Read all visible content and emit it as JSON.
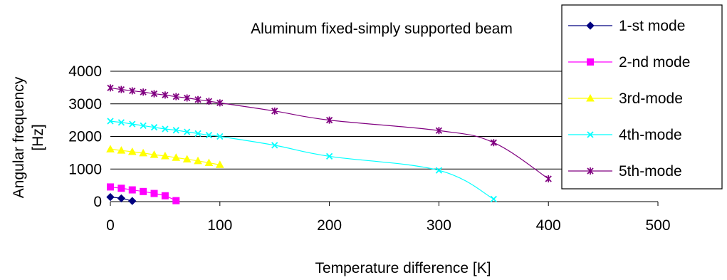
{
  "chart_data": {
    "type": "line",
    "title": "Aluminum fixed-simply supported beam",
    "xlabel": "Temperature difference  [K]",
    "ylabel_lines": [
      "Angular frequency",
      "[Hz]"
    ],
    "xlim": [
      0,
      500
    ],
    "ylim": [
      0,
      4000
    ],
    "x_ticks": [
      0,
      100,
      200,
      300,
      400,
      500
    ],
    "y_ticks": [
      0,
      1000,
      2000,
      3000,
      4000
    ],
    "grid": true,
    "legend_position": "right",
    "series": [
      {
        "name": "1-st mode",
        "color": "#000080",
        "marker": "diamond",
        "x": [
          0,
          10,
          20
        ],
        "y": [
          140,
          100,
          20
        ]
      },
      {
        "name": "2-nd mode",
        "color": "#FF00FF",
        "marker": "square",
        "x": [
          0,
          10,
          20,
          30,
          40,
          50,
          60
        ],
        "y": [
          450,
          410,
          360,
          310,
          250,
          180,
          30
        ]
      },
      {
        "name": "3rd-mode",
        "color": "#FFFF00",
        "marker": "triangle",
        "x": [
          0,
          10,
          20,
          30,
          40,
          50,
          60,
          70,
          80,
          90,
          100
        ],
        "y": [
          1610,
          1570,
          1530,
          1490,
          1440,
          1400,
          1350,
          1300,
          1250,
          1190,
          1130
        ]
      },
      {
        "name": "4th-mode",
        "color": "#00FFFF",
        "marker": "x",
        "x": [
          0,
          10,
          20,
          30,
          40,
          50,
          60,
          70,
          80,
          90,
          100,
          150,
          200,
          300,
          350
        ],
        "y": [
          2470,
          2430,
          2380,
          2330,
          2280,
          2230,
          2190,
          2140,
          2090,
          2040,
          2000,
          1730,
          1390,
          960,
          80
        ]
      },
      {
        "name": "5th-mode",
        "color": "#800080",
        "marker": "star",
        "x": [
          0,
          10,
          20,
          30,
          40,
          50,
          60,
          70,
          80,
          90,
          100,
          150,
          200,
          300,
          350,
          400
        ],
        "y": [
          3490,
          3440,
          3400,
          3360,
          3310,
          3270,
          3220,
          3180,
          3130,
          3080,
          3030,
          2780,
          2500,
          2180,
          1810,
          700
        ]
      }
    ]
  }
}
